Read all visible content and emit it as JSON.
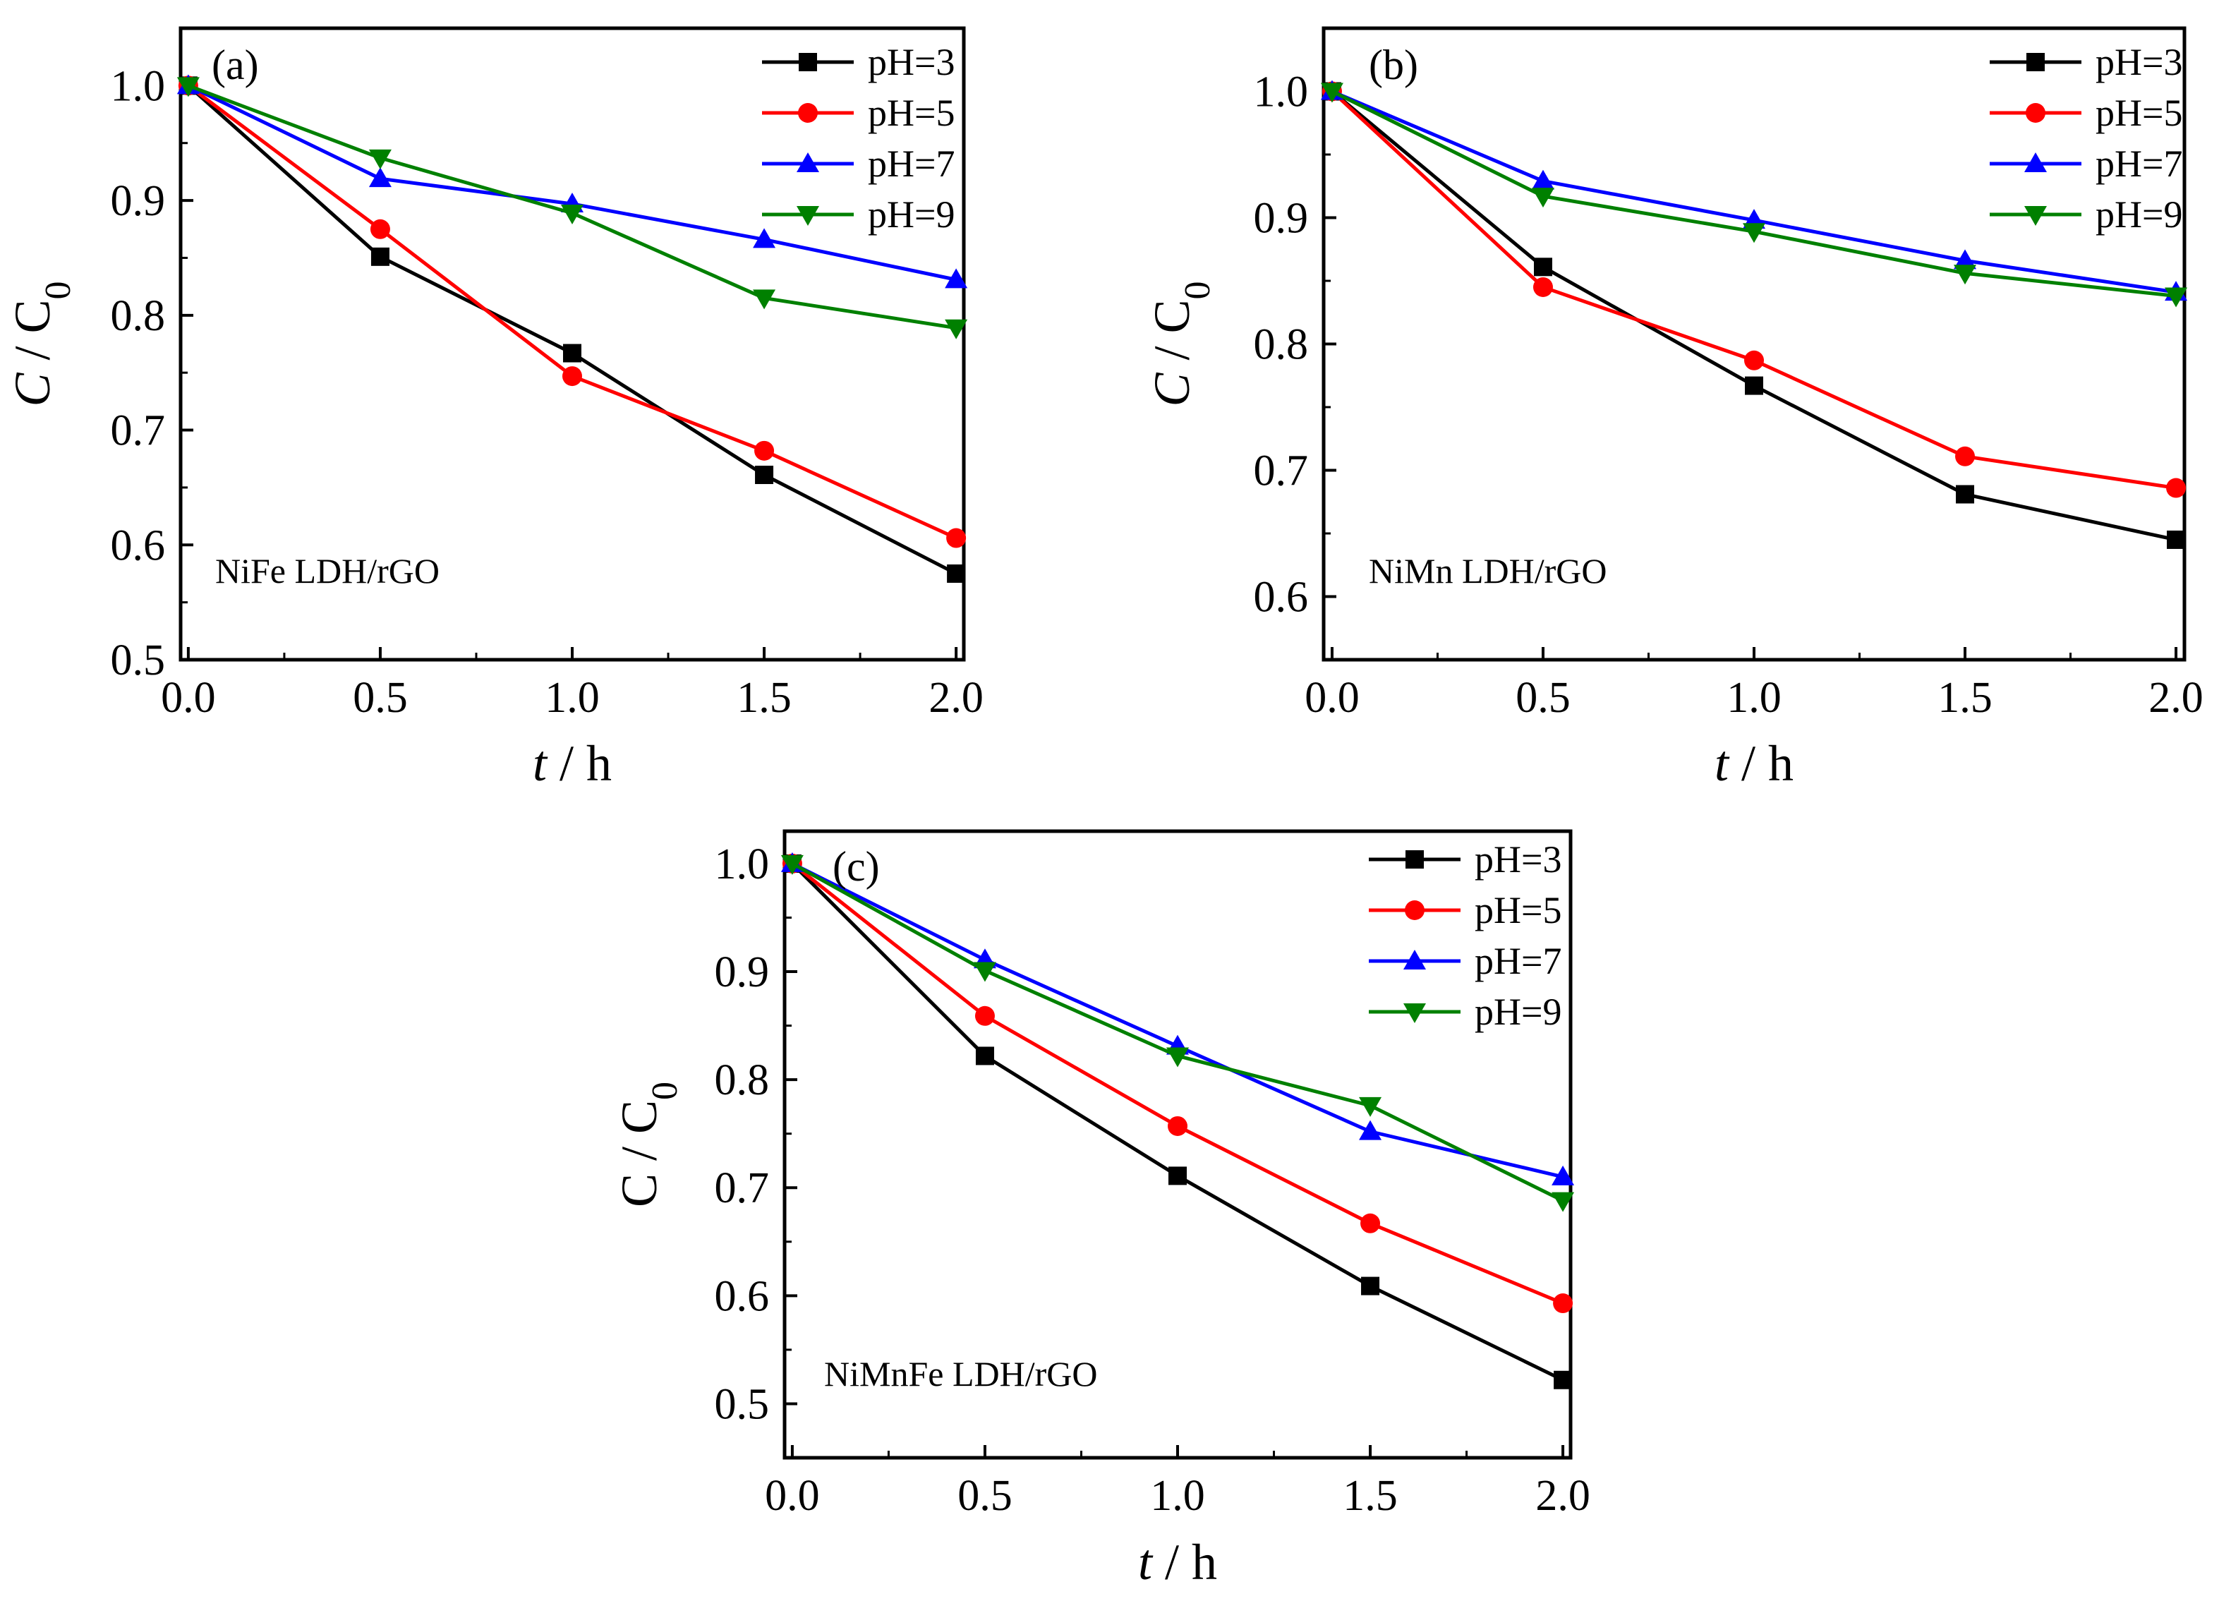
{
  "chart_data": [
    {
      "type": "line",
      "panel_label": "(a)",
      "annotation": "NiFe LDH/rGO",
      "xlabel_italic": "t",
      "xlabel_rest": " / h",
      "ylabel_italic": "C",
      "ylabel_rest": " / C",
      "ylabel_subscript": "0",
      "xlim": [
        -0.02,
        2.02
      ],
      "ylim": [
        0.5,
        1.05
      ],
      "xticks": [
        0.0,
        0.5,
        1.0,
        1.5,
        2.0
      ],
      "xtick_labels": [
        "0.0",
        "0.5",
        "1.0",
        "1.5",
        "2.0"
      ],
      "yticks": [
        0.5,
        0.6,
        0.7,
        0.8,
        0.9,
        1.0
      ],
      "ytick_labels": [
        "0.5",
        "0.6",
        "0.7",
        "0.8",
        "0.9",
        "1.0"
      ],
      "legend_position": "top-right",
      "x": [
        0.0,
        0.5,
        1.0,
        1.5,
        2.0
      ],
      "series": [
        {
          "name": "pH=3",
          "color": "#000000",
          "marker": "square",
          "values": [
            1.0,
            0.851,
            0.767,
            0.661,
            0.575
          ]
        },
        {
          "name": "pH=5",
          "color": "#ff0000",
          "marker": "circle",
          "values": [
            1.0,
            0.875,
            0.747,
            0.682,
            0.606
          ]
        },
        {
          "name": "pH=7",
          "color": "#0000ff",
          "marker": "triangle-up",
          "values": [
            1.0,
            0.919,
            0.897,
            0.866,
            0.831
          ]
        },
        {
          "name": "pH=9",
          "color": "#008000",
          "marker": "triangle-down",
          "values": [
            1.0,
            0.937,
            0.889,
            0.815,
            0.789
          ]
        }
      ]
    },
    {
      "type": "line",
      "panel_label": "(b)",
      "annotation": "NiMn LDH/rGO",
      "xlabel_italic": "t",
      "xlabel_rest": " / h",
      "ylabel_italic": "C",
      "ylabel_rest": " / C",
      "ylabel_subscript": "0",
      "xlim": [
        -0.02,
        2.02
      ],
      "ylim": [
        0.55,
        1.05
      ],
      "xticks": [
        0.0,
        0.5,
        1.0,
        1.5,
        2.0
      ],
      "xtick_labels": [
        "0.0",
        "0.5",
        "1.0",
        "1.5",
        "2.0"
      ],
      "yticks": [
        0.6,
        0.7,
        0.8,
        0.9,
        1.0
      ],
      "ytick_labels": [
        "0.6",
        "0.7",
        "0.8",
        "0.9",
        "1.0"
      ],
      "legend_position": "top-right",
      "x": [
        0.0,
        0.5,
        1.0,
        1.5,
        2.0
      ],
      "series": [
        {
          "name": "pH=3",
          "color": "#000000",
          "marker": "square",
          "values": [
            1.0,
            0.861,
            0.767,
            0.681,
            0.645
          ]
        },
        {
          "name": "pH=5",
          "color": "#ff0000",
          "marker": "circle",
          "values": [
            1.0,
            0.845,
            0.787,
            0.711,
            0.686
          ]
        },
        {
          "name": "pH=7",
          "color": "#0000ff",
          "marker": "triangle-up",
          "values": [
            1.0,
            0.929,
            0.898,
            0.866,
            0.841
          ]
        },
        {
          "name": "pH=9",
          "color": "#008000",
          "marker": "triangle-down",
          "values": [
            1.0,
            0.917,
            0.889,
            0.856,
            0.838
          ]
        }
      ]
    },
    {
      "type": "line",
      "panel_label": "(c)",
      "annotation": "NiMnFe LDH/rGO",
      "xlabel_italic": "t",
      "xlabel_rest": " / h",
      "ylabel_italic": "",
      "ylabel_rest": "C / C",
      "ylabel_subscript": "0",
      "xlim": [
        -0.02,
        2.02
      ],
      "ylim": [
        0.45,
        1.03
      ],
      "xticks": [
        0.0,
        0.5,
        1.0,
        1.5,
        2.0
      ],
      "xtick_labels": [
        "0.0",
        "0.5",
        "1.0",
        "1.5",
        "2.0"
      ],
      "yticks": [
        0.5,
        0.6,
        0.7,
        0.8,
        0.9,
        1.0
      ],
      "ytick_labels": [
        "0.5",
        "0.6",
        "0.7",
        "0.8",
        "0.9",
        "1.0"
      ],
      "legend_position": "top-right",
      "x": [
        0.0,
        0.5,
        1.0,
        1.5,
        2.0
      ],
      "series": [
        {
          "name": "pH=3",
          "color": "#000000",
          "marker": "square",
          "values": [
            1.0,
            0.822,
            0.711,
            0.609,
            0.522
          ]
        },
        {
          "name": "pH=5",
          "color": "#ff0000",
          "marker": "circle",
          "values": [
            1.0,
            0.859,
            0.757,
            0.667,
            0.593
          ]
        },
        {
          "name": "pH=7",
          "color": "#0000ff",
          "marker": "triangle-up",
          "values": [
            1.0,
            0.911,
            0.831,
            0.752,
            0.71
          ]
        },
        {
          "name": "pH=9",
          "color": "#008000",
          "marker": "triangle-down",
          "values": [
            1.0,
            0.901,
            0.822,
            0.776,
            0.688
          ]
        }
      ]
    }
  ]
}
